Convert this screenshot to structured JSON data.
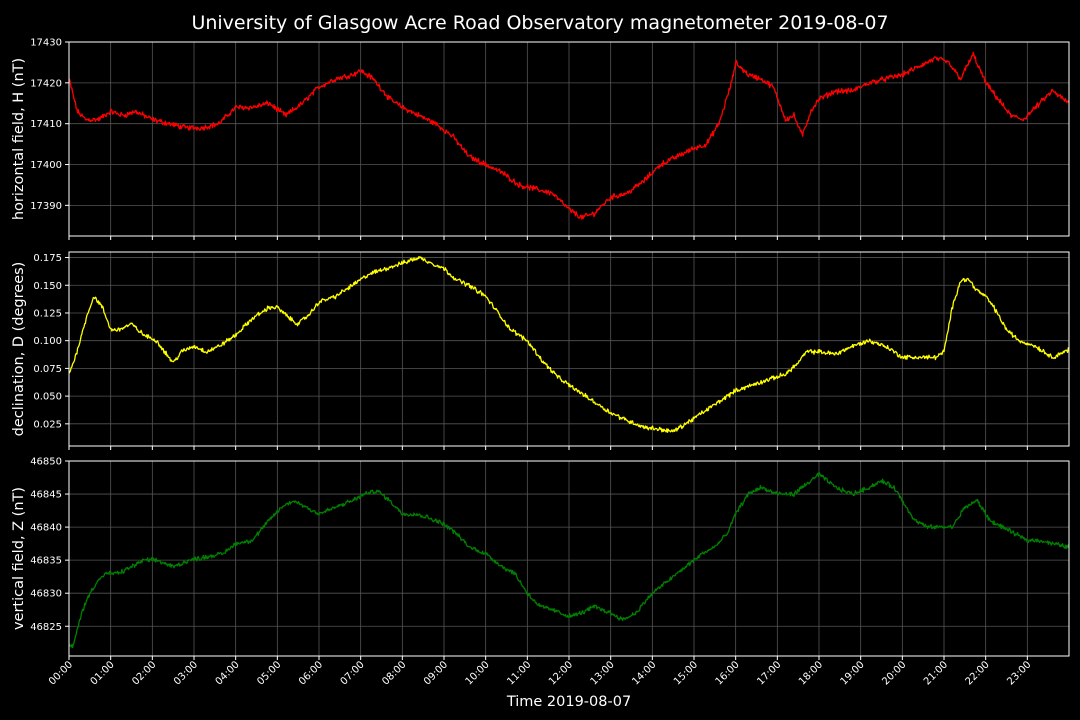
{
  "chart_data": {
    "type": "line",
    "title": "University of Glasgow Acre Road Observatory magnetometer 2019-08-07",
    "xlabel": "Time 2019-08-07",
    "x_ticks": [
      "00:00",
      "01:00",
      "02:00",
      "03:00",
      "04:00",
      "05:00",
      "06:00",
      "07:00",
      "08:00",
      "09:00",
      "10:00",
      "11:00",
      "12:00",
      "13:00",
      "14:00",
      "15:00",
      "16:00",
      "17:00",
      "18:00",
      "19:00",
      "20:00",
      "21:00",
      "22:00",
      "23:00"
    ],
    "xlim_hours": [
      0,
      24
    ],
    "grid": true,
    "panels": [
      {
        "ylabel": "horizontal field, H (nT)",
        "color": "#ff0000",
        "ylim": [
          17382.5,
          17430
        ],
        "yticks": [
          17390,
          17400,
          17410,
          17420,
          17430
        ],
        "ytick_labels": [
          "17390",
          "17400",
          "17410",
          "17420",
          "17430"
        ],
        "noise": 1.0,
        "series": {
          "x": [
            0,
            0.2,
            0.4,
            0.7,
            1.0,
            1.3,
            1.6,
            2.0,
            2.4,
            2.8,
            3.2,
            3.6,
            4.0,
            4.4,
            4.8,
            5.2,
            5.6,
            6.0,
            6.4,
            6.8,
            7.0,
            7.3,
            7.7,
            8.0,
            8.4,
            8.8,
            9.2,
            9.6,
            10.0,
            10.4,
            10.8,
            11.2,
            11.6,
            12.0,
            12.3,
            12.6,
            13.0,
            13.4,
            13.8,
            14.2,
            14.6,
            15.0,
            15.3,
            15.6,
            15.9,
            16.0,
            16.3,
            16.6,
            16.9,
            17.2,
            17.4,
            17.6,
            17.8,
            18.0,
            18.4,
            18.8,
            19.2,
            19.6,
            20.0,
            20.4,
            20.8,
            21.1,
            21.4,
            21.7,
            22.0,
            22.3,
            22.6,
            22.9,
            23.2,
            23.6,
            24.0
          ],
          "y": [
            17421,
            17413,
            17411,
            17411,
            17413,
            17412,
            17413,
            17411,
            17410,
            17409,
            17409,
            17410,
            17414,
            17414,
            17415,
            17412,
            17415,
            17419,
            17421,
            17422,
            17423,
            17421,
            17416,
            17414,
            17412,
            17410,
            17407,
            17402,
            17400,
            17398,
            17395,
            17394,
            17393,
            17389,
            17387,
            17388,
            17392,
            17393,
            17396,
            17400,
            17402,
            17404,
            17405,
            17410,
            17420,
            17425,
            17422,
            17421,
            17419,
            17411,
            17412,
            17407,
            17413,
            17416,
            17418,
            17418,
            17420,
            17421,
            17422,
            17424,
            17426,
            17425,
            17421,
            17427,
            17420,
            17416,
            17412,
            17411,
            17414,
            17418,
            17415
          ]
        }
      },
      {
        "ylabel": "declination, D (degrees)",
        "color": "#ffff00",
        "ylim": [
          0.005,
          0.18
        ],
        "yticks": [
          0.025,
          0.05,
          0.075,
          0.1,
          0.125,
          0.15,
          0.175
        ],
        "ytick_labels": [
          "0.025",
          "0.050",
          "0.075",
          "0.100",
          "0.125",
          "0.150",
          "0.175"
        ],
        "noise": 0.003,
        "series": {
          "x": [
            0,
            0.15,
            0.3,
            0.45,
            0.6,
            0.8,
            1.0,
            1.2,
            1.5,
            1.8,
            2.1,
            2.3,
            2.5,
            2.7,
            3.0,
            3.3,
            3.6,
            4.0,
            4.4,
            4.8,
            5.0,
            5.3,
            5.5,
            5.8,
            6.0,
            6.4,
            6.8,
            7.2,
            7.6,
            8.0,
            8.4,
            8.7,
            9.0,
            9.3,
            9.6,
            10.0,
            10.3,
            10.6,
            11.0,
            11.4,
            11.8,
            12.2,
            12.6,
            13.0,
            13.4,
            13.8,
            14.2,
            14.5,
            14.8,
            15.2,
            15.6,
            16.0,
            16.4,
            16.8,
            17.2,
            17.5,
            17.7,
            18.0,
            18.4,
            18.8,
            19.2,
            19.6,
            20.0,
            20.4,
            20.8,
            21.0,
            21.2,
            21.4,
            21.6,
            21.8,
            22.0,
            22.2,
            22.5,
            22.8,
            23.2,
            23.6,
            24.0
          ],
          "y": [
            0.07,
            0.085,
            0.105,
            0.125,
            0.14,
            0.13,
            0.11,
            0.11,
            0.115,
            0.105,
            0.1,
            0.09,
            0.08,
            0.09,
            0.095,
            0.09,
            0.095,
            0.105,
            0.12,
            0.13,
            0.13,
            0.12,
            0.115,
            0.125,
            0.135,
            0.14,
            0.15,
            0.16,
            0.165,
            0.17,
            0.175,
            0.17,
            0.165,
            0.155,
            0.15,
            0.14,
            0.125,
            0.11,
            0.1,
            0.08,
            0.065,
            0.055,
            0.045,
            0.035,
            0.028,
            0.022,
            0.02,
            0.018,
            0.025,
            0.035,
            0.045,
            0.055,
            0.06,
            0.065,
            0.07,
            0.08,
            0.09,
            0.09,
            0.088,
            0.095,
            0.1,
            0.095,
            0.085,
            0.085,
            0.085,
            0.09,
            0.13,
            0.155,
            0.155,
            0.145,
            0.14,
            0.13,
            0.11,
            0.1,
            0.095,
            0.085,
            0.092
          ]
        }
      },
      {
        "ylabel": "vertical field, Z (nT)",
        "color": "#008000",
        "ylim": [
          46820.5,
          46850
        ],
        "yticks": [
          46825,
          46830,
          46835,
          46840,
          46845,
          46850
        ],
        "ytick_labels": [
          "46825",
          "46830",
          "46835",
          "46840",
          "46845",
          "46850"
        ],
        "noise": 0.5,
        "series": {
          "x": [
            0,
            0.1,
            0.3,
            0.5,
            0.7,
            0.9,
            1.2,
            1.5,
            1.8,
            2.1,
            2.5,
            2.9,
            3.3,
            3.7,
            4.0,
            4.4,
            4.8,
            5.1,
            5.4,
            5.7,
            6.0,
            6.4,
            6.8,
            7.1,
            7.4,
            7.7,
            8.0,
            8.3,
            8.6,
            9.0,
            9.3,
            9.6,
            10.0,
            10.4,
            10.7,
            11.0,
            11.3,
            11.6,
            12.0,
            12.3,
            12.6,
            13.0,
            13.3,
            13.6,
            14.0,
            14.4,
            14.8,
            15.2,
            15.5,
            15.8,
            16.0,
            16.3,
            16.6,
            17.0,
            17.4,
            17.6,
            17.8,
            18.0,
            18.4,
            18.8,
            19.2,
            19.5,
            19.8,
            20.0,
            20.3,
            20.6,
            20.9,
            21.2,
            21.5,
            21.8,
            22.1,
            22.4,
            22.7,
            23.0,
            23.3,
            23.6,
            24.0
          ],
          "y": [
            46822,
            46822,
            46827,
            46830,
            46832,
            46833,
            46833,
            46834,
            46835,
            46835,
            46834,
            46835,
            46835.5,
            46836,
            46837.5,
            46838,
            46841,
            46843,
            46844,
            46843,
            46842,
            46843,
            46844,
            46845,
            46845.5,
            46844,
            46842,
            46842,
            46841.5,
            46840.5,
            46839,
            46837,
            46836,
            46834,
            46833,
            46830,
            46828,
            46827.5,
            46826.5,
            46827,
            46828,
            46827,
            46826,
            46827,
            46830,
            46832,
            46834,
            46836,
            46837,
            46839,
            46842,
            46845,
            46846,
            46845,
            46845,
            46846,
            46847,
            46848,
            46846,
            46845,
            46846,
            46847,
            46846,
            46844,
            46841,
            46840,
            46840,
            46840,
            46843,
            46844,
            46841,
            46840,
            46839,
            46838,
            46838,
            46837.5,
            46837
          ]
        }
      }
    ]
  }
}
